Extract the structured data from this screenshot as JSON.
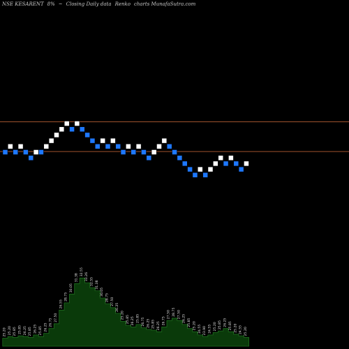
{
  "header": {
    "symbol": "NSE KESARENT",
    "brick_size": "8%",
    "trend": "~",
    "type": "Closing Daily data",
    "chart_name": "Renko",
    "brand": "charts MunafaSutra.com"
  },
  "colors": {
    "background": "#000000",
    "up_brick": "#ffffff",
    "down_brick": "#1e78ff",
    "brick_border": "#000000",
    "reference_line": "#a0522d",
    "volume_fill": "#0a3a0a",
    "volume_edge": "#1e6e1e",
    "volume_label": "#e0e0e0"
  },
  "chart_data": {
    "type": "renko",
    "bricks": [
      {
        "level": 0,
        "dir": "down"
      },
      {
        "level": 1,
        "dir": "up"
      },
      {
        "level": 0,
        "dir": "down"
      },
      {
        "level": 1,
        "dir": "up"
      },
      {
        "level": 0,
        "dir": "down"
      },
      {
        "level": -1,
        "dir": "down"
      },
      {
        "level": 0,
        "dir": "up"
      },
      {
        "level": 0,
        "dir": "down"
      },
      {
        "level": 1,
        "dir": "up"
      },
      {
        "level": 2,
        "dir": "up"
      },
      {
        "level": 3,
        "dir": "up"
      },
      {
        "level": 4,
        "dir": "up"
      },
      {
        "level": 5,
        "dir": "up"
      },
      {
        "level": 4,
        "dir": "down"
      },
      {
        "level": 5,
        "dir": "up"
      },
      {
        "level": 4,
        "dir": "down"
      },
      {
        "level": 3,
        "dir": "down"
      },
      {
        "level": 2,
        "dir": "down"
      },
      {
        "level": 1,
        "dir": "down"
      },
      {
        "level": 2,
        "dir": "up"
      },
      {
        "level": 1,
        "dir": "down"
      },
      {
        "level": 2,
        "dir": "up"
      },
      {
        "level": 1,
        "dir": "down"
      },
      {
        "level": 0,
        "dir": "down"
      },
      {
        "level": 1,
        "dir": "up"
      },
      {
        "level": 0,
        "dir": "down"
      },
      {
        "level": 1,
        "dir": "up"
      },
      {
        "level": 0,
        "dir": "down"
      },
      {
        "level": -1,
        "dir": "down"
      },
      {
        "level": 0,
        "dir": "up"
      },
      {
        "level": 1,
        "dir": "up"
      },
      {
        "level": 2,
        "dir": "up"
      },
      {
        "level": 1,
        "dir": "down"
      },
      {
        "level": 0,
        "dir": "down"
      },
      {
        "level": -1,
        "dir": "down"
      },
      {
        "level": -2,
        "dir": "down"
      },
      {
        "level": -3,
        "dir": "down"
      },
      {
        "level": -4,
        "dir": "down"
      },
      {
        "level": -3,
        "dir": "up"
      },
      {
        "level": -4,
        "dir": "down"
      },
      {
        "level": -3,
        "dir": "up"
      },
      {
        "level": -2,
        "dir": "up"
      },
      {
        "level": -1,
        "dir": "up"
      },
      {
        "level": -2,
        "dir": "down"
      },
      {
        "level": -1,
        "dir": "up"
      },
      {
        "level": -2,
        "dir": "down"
      },
      {
        "level": -3,
        "dir": "down"
      },
      {
        "level": -2,
        "dir": "up"
      }
    ],
    "reference_lines": [
      5.3,
      0.1
    ],
    "volume": [
      {
        "value": 1,
        "label": "25.20"
      },
      {
        "value": 1.2,
        "label": "25.20"
      },
      {
        "value": 1.1,
        "label": "25.85"
      },
      {
        "value": 1.3,
        "label": "25.85"
      },
      {
        "value": 1.2,
        "label": "26.25"
      },
      {
        "value": 1.1,
        "label": "25.85"
      },
      {
        "value": 1.4,
        "label": "26.25"
      },
      {
        "value": 1.2,
        "label": "25.85"
      },
      {
        "value": 1.6,
        "label": "26.25"
      },
      {
        "value": 2.2,
        "label": "26.75"
      },
      {
        "value": 2.8,
        "label": "27.50"
      },
      {
        "value": 4.5,
        "label": "26.55"
      },
      {
        "value": 5.4,
        "label": "28.75"
      },
      {
        "value": 6.5,
        "label": "30.05"
      },
      {
        "value": 7.8,
        "label": "31.38"
      },
      {
        "value": 8.5,
        "label": "32.55"
      },
      {
        "value": 7.9,
        "label": "33.26"
      },
      {
        "value": 7.3,
        "label": "32.55"
      },
      {
        "value": 6.9,
        "label": "31.38"
      },
      {
        "value": 6.0,
        "label": "30.05"
      },
      {
        "value": 5.3,
        "label": "28.75"
      },
      {
        "value": 4.8,
        "label": "27.50"
      },
      {
        "value": 4.1,
        "label": "26.25"
      },
      {
        "value": 3.1,
        "label": "25.20"
      },
      {
        "value": 2.6,
        "label": "25.85"
      },
      {
        "value": 2.4,
        "label": "26.25"
      },
      {
        "value": 2.7,
        "label": "25.85"
      },
      {
        "value": 2.3,
        "label": "26.75"
      },
      {
        "value": 2.1,
        "label": "26.25"
      },
      {
        "value": 2.0,
        "label": "25.85"
      },
      {
        "value": 1.8,
        "label": "26.25"
      },
      {
        "value": 2.4,
        "label": "26.75"
      },
      {
        "value": 3.2,
        "label": "27.50"
      },
      {
        "value": 3.5,
        "label": "28.75"
      },
      {
        "value": 3.2,
        "label": "27.50"
      },
      {
        "value": 2.7,
        "label": "26.25"
      },
      {
        "value": 2.2,
        "label": "25.85"
      },
      {
        "value": 1.8,
        "label": "25.20"
      },
      {
        "value": 1.4,
        "label": "24.55"
      },
      {
        "value": 1.2,
        "label": "23.90"
      },
      {
        "value": 1.4,
        "label": "24.55"
      },
      {
        "value": 1.7,
        "label": "25.20"
      },
      {
        "value": 1.9,
        "label": "25.85"
      },
      {
        "value": 2.2,
        "label": "26.25"
      },
      {
        "value": 1.8,
        "label": "25.85"
      },
      {
        "value": 1.5,
        "label": "25.20"
      },
      {
        "value": 1.3,
        "label": "24.55"
      },
      {
        "value": 1.1,
        "label": "25.20"
      }
    ]
  }
}
